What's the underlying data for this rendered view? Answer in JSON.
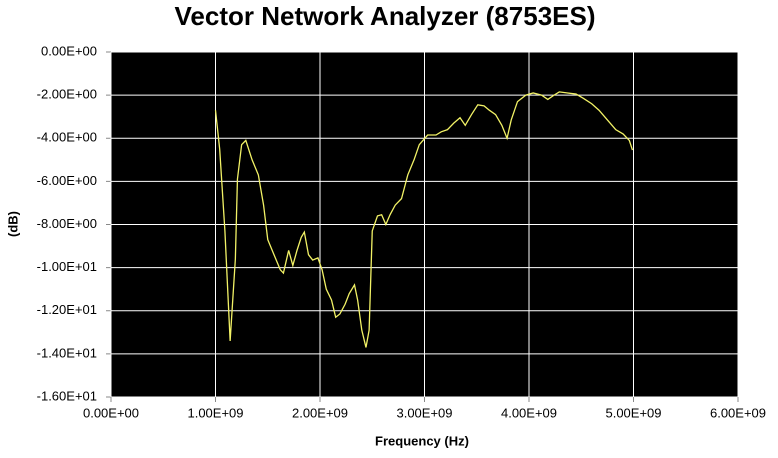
{
  "chart_data": {
    "type": "line",
    "title": "Vector Network Analyzer (8753ES)",
    "xlabel": "Frequency (Hz)",
    "ylabel": "(dB)",
    "background": "#000000",
    "grid": true,
    "grid_color": "#ffffff",
    "xlim": [
      0,
      6000000000.0
    ],
    "ylim": [
      -16,
      0
    ],
    "xticks": [
      {
        "value": 0,
        "label": "0.00E+00"
      },
      {
        "value": 1000000000.0,
        "label": "1.00E+09"
      },
      {
        "value": 2000000000.0,
        "label": "2.00E+09"
      },
      {
        "value": 3000000000.0,
        "label": "3.00E+09"
      },
      {
        "value": 4000000000.0,
        "label": "4.00E+09"
      },
      {
        "value": 5000000000.0,
        "label": "5.00E+09"
      },
      {
        "value": 6000000000.0,
        "label": "6.00E+09"
      }
    ],
    "yticks": [
      {
        "value": 0,
        "label": "0.00E+00"
      },
      {
        "value": -2,
        "label": "-2.00E+00"
      },
      {
        "value": -4,
        "label": "-4.00E+00"
      },
      {
        "value": -6,
        "label": "-6.00E+00"
      },
      {
        "value": -8,
        "label": "-8.00E+00"
      },
      {
        "value": -10,
        "label": "-1.00E+01"
      },
      {
        "value": -12,
        "label": "-1.20E+01"
      },
      {
        "value": -14,
        "label": "-1.40E+01"
      },
      {
        "value": -16,
        "label": "-1.60E+01"
      }
    ],
    "series": [
      {
        "color": "#f2f266",
        "x": [
          1000000000.0,
          1040000000.0,
          1090000000.0,
          1140000000.0,
          1190000000.0,
          1210000000.0,
          1250000000.0,
          1290000000.0,
          1350000000.0,
          1410000000.0,
          1460000000.0,
          1500000000.0,
          1560000000.0,
          1620000000.0,
          1650000000.0,
          1700000000.0,
          1740000000.0,
          1780000000.0,
          1820000000.0,
          1850000000.0,
          1890000000.0,
          1930000000.0,
          1980000000.0,
          2020000000.0,
          2060000000.0,
          2110000000.0,
          2150000000.0,
          2190000000.0,
          2240000000.0,
          2280000000.0,
          2330000000.0,
          2360000000.0,
          2400000000.0,
          2440000000.0,
          2470000000.0,
          2500000000.0,
          2550000000.0,
          2590000000.0,
          2630000000.0,
          2670000000.0,
          2720000000.0,
          2780000000.0,
          2840000000.0,
          2900000000.0,
          2950000000.0,
          3030000000.0,
          3110000000.0,
          3160000000.0,
          3220000000.0,
          3280000000.0,
          3340000000.0,
          3390000000.0,
          3450000000.0,
          3510000000.0,
          3570000000.0,
          3620000000.0,
          3680000000.0,
          3740000000.0,
          3790000000.0,
          3830000000.0,
          3890000000.0,
          3970000000.0,
          4040000000.0,
          4120000000.0,
          4180000000.0,
          4240000000.0,
          4290000000.0,
          4370000000.0,
          4450000000.0,
          4520000000.0,
          4600000000.0,
          4670000000.0,
          4750000000.0,
          4830000000.0,
          4900000000.0,
          4960000000.0,
          4990000000.0
        ],
        "values": [
          -2.7,
          -4.5,
          -8.3,
          -13.4,
          -9.6,
          -5.9,
          -4.3,
          -4.1,
          -5.0,
          -5.7,
          -7.1,
          -8.7,
          -9.4,
          -10.1,
          -10.25,
          -9.2,
          -9.9,
          -9.2,
          -8.6,
          -8.35,
          -9.4,
          -9.65,
          -9.55,
          -10.1,
          -11.0,
          -11.5,
          -12.3,
          -12.15,
          -11.7,
          -11.2,
          -10.8,
          -11.5,
          -12.9,
          -13.7,
          -12.9,
          -8.3,
          -7.6,
          -7.55,
          -8.0,
          -7.55,
          -7.1,
          -6.8,
          -5.7,
          -5.0,
          -4.3,
          -3.85,
          -3.85,
          -3.7,
          -3.6,
          -3.3,
          -3.05,
          -3.4,
          -2.9,
          -2.45,
          -2.5,
          -2.7,
          -2.9,
          -3.4,
          -4.0,
          -3.15,
          -2.3,
          -2.0,
          -1.9,
          -2.0,
          -2.2,
          -2.0,
          -1.85,
          -1.9,
          -1.95,
          -2.15,
          -2.4,
          -2.7,
          -3.15,
          -3.6,
          -3.8,
          -4.1,
          -4.55
        ]
      }
    ]
  }
}
